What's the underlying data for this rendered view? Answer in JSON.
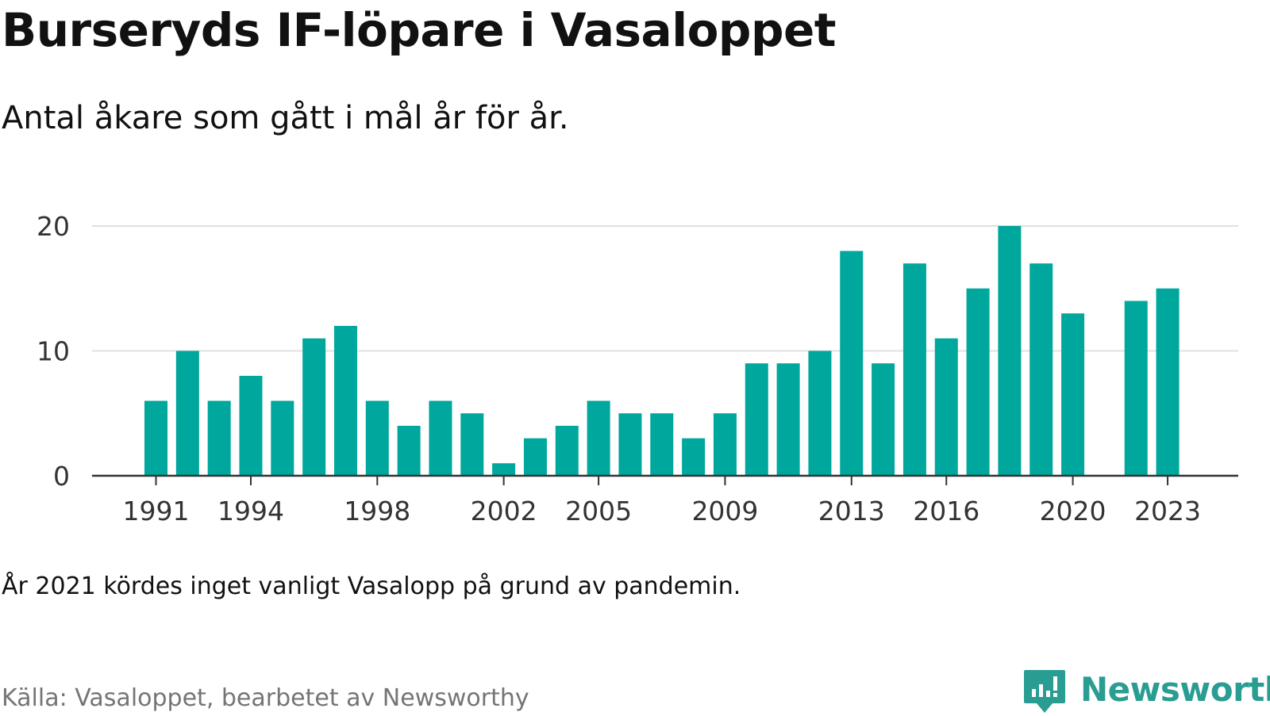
{
  "title": "Burseryds IF-löpare i Vasaloppet",
  "subtitle": "Antal åkare som gått i mål år för år.",
  "note": "År 2021 kördes inget vanligt Vasalopp på grund av pandemin.",
  "source": "Källa: Vasaloppet, bearbetet av Newsworthy",
  "brand": {
    "name": "Newsworthy",
    "icon": "newsworthy-chart-icon",
    "color": "#2a9d93"
  },
  "colors": {
    "bar": "#00a79d",
    "grid": "#e0e0e0",
    "axis": "#333333"
  },
  "chart_data": {
    "type": "bar",
    "title": "Burseryds IF-löpare i Vasaloppet",
    "categories": [
      1991,
      1992,
      1993,
      1994,
      1995,
      1996,
      1997,
      1998,
      1999,
      2000,
      2001,
      2002,
      2003,
      2004,
      2005,
      2006,
      2007,
      2008,
      2009,
      2010,
      2011,
      2012,
      2013,
      2014,
      2015,
      2016,
      2017,
      2018,
      2019,
      2020,
      2021,
      2022,
      2023
    ],
    "values": [
      6,
      10,
      6,
      8,
      6,
      11,
      12,
      6,
      4,
      6,
      5,
      1,
      3,
      4,
      6,
      5,
      5,
      3,
      5,
      9,
      9,
      10,
      18,
      9,
      17,
      11,
      15,
      20,
      17,
      13,
      null,
      14,
      15
    ],
    "x_tick_labels": [
      "1991",
      "1994",
      "1998",
      "2002",
      "2005",
      "2009",
      "2013",
      "2016",
      "2020",
      "2023"
    ],
    "y_ticks": [
      "0",
      "10",
      "20"
    ],
    "ylim": [
      0,
      20
    ],
    "xlabel": "",
    "ylabel": "",
    "grid": true,
    "legend": false
  }
}
